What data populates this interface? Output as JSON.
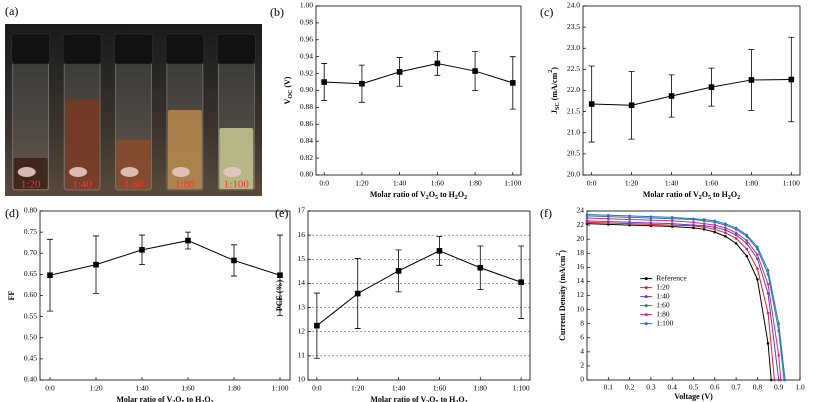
{
  "chart_data": [
    {
      "type": "photo",
      "panel_label": "(a)",
      "labels": [
        "1:20",
        "1:40",
        "1:60",
        "1:80",
        "1:100"
      ]
    },
    {
      "type": "line",
      "panel_label": "(b)",
      "ylabel": [
        {
          "t": "V"
        },
        {
          "t": "OC",
          "sub": true
        },
        {
          "t": " (V)"
        }
      ],
      "xlabel": [
        {
          "t": "Molar ratio of V"
        },
        {
          "t": "2",
          "sub": true
        },
        {
          "t": "O"
        },
        {
          "t": "5",
          "sub": true
        },
        {
          "t": " to H"
        },
        {
          "t": "2",
          "sub": true
        },
        {
          "t": "O"
        },
        {
          "t": "2",
          "sub": true
        }
      ],
      "categories": [
        "0:0",
        "1:20",
        "1:40",
        "1:60",
        "1:80",
        "1:100"
      ],
      "values": [
        0.91,
        0.908,
        0.922,
        0.932,
        0.923,
        0.909
      ],
      "errors": [
        0.022,
        0.022,
        0.017,
        0.014,
        0.023,
        0.031
      ],
      "ylim": [
        0.8,
        1.0
      ],
      "yticks": [
        {
          "value": 0.8,
          "label": "0.80"
        },
        0.82,
        0.84,
        0.86,
        0.88,
        {
          "value": 0.9,
          "label": "0.90"
        },
        0.92,
        0.94,
        0.96,
        0.98,
        {
          "value": 1.0,
          "label": "1.00"
        }
      ],
      "color": "#000000",
      "grid": false
    },
    {
      "type": "line",
      "panel_label": "(c)",
      "ylabel": [
        {
          "t": "J"
        },
        {
          "t": "SC",
          "sub": true
        },
        {
          "t": " (mA/cm"
        },
        {
          "t": "2",
          "sup": true
        },
        {
          "t": ")"
        }
      ],
      "xlabel": [
        {
          "t": "Molar ratio of V"
        },
        {
          "t": "2",
          "sub": true
        },
        {
          "t": "O"
        },
        {
          "t": "5",
          "sub": true
        },
        {
          "t": " to H"
        },
        {
          "t": "2",
          "sub": true
        },
        {
          "t": "O"
        },
        {
          "t": "2",
          "sub": true
        }
      ],
      "categories": [
        "0:0",
        "1:20",
        "1:40",
        "1:60",
        "1:80",
        "1:100"
      ],
      "values": [
        21.68,
        21.65,
        21.87,
        22.08,
        22.25,
        22.26
      ],
      "errors": [
        0.9,
        0.8,
        0.5,
        0.45,
        0.72,
        1.0
      ],
      "ylim": [
        20.0,
        24.0
      ],
      "yticks": [
        {
          "value": 20,
          "label": "20.0"
        },
        20.5,
        {
          "value": 21,
          "label": "21.0"
        },
        21.5,
        {
          "value": 22,
          "label": "22.0"
        },
        22.5,
        {
          "value": 23,
          "label": "23.0"
        },
        23.5,
        {
          "value": 24,
          "label": "24.0"
        }
      ],
      "color": "#000000",
      "grid": false
    },
    {
      "type": "line",
      "panel_label": "(d)",
      "ylabel": [
        {
          "t": "FF"
        }
      ],
      "xlabel": [
        {
          "t": "Molar ratio of V"
        },
        {
          "t": "2",
          "sub": true
        },
        {
          "t": "O"
        },
        {
          "t": "5",
          "sub": true
        },
        {
          "t": " to H"
        },
        {
          "t": "2",
          "sub": true
        },
        {
          "t": "O"
        },
        {
          "t": "2",
          "sub": true
        }
      ],
      "categories": [
        "0:0",
        "1:20",
        "1:40",
        "1:60",
        "1:80",
        "1:100"
      ],
      "values": [
        0.648,
        0.673,
        0.708,
        0.73,
        0.683,
        0.648
      ],
      "errors": [
        0.085,
        0.068,
        0.035,
        0.02,
        0.037,
        0.095
      ],
      "ylim": [
        0.4,
        0.8
      ],
      "yticks": [
        {
          "value": 0.4,
          "label": "0.40"
        },
        0.45,
        {
          "value": 0.5,
          "label": "0.50"
        },
        0.55,
        {
          "value": 0.6,
          "label": "0.60"
        },
        0.65,
        {
          "value": 0.7,
          "label": "0.70"
        },
        0.75,
        {
          "value": 0.8,
          "label": "0.80"
        }
      ],
      "color": "#000000",
      "grid": false
    },
    {
      "type": "line",
      "panel_label": "(e)",
      "ylabel": [
        {
          "t": "PCE (%)"
        }
      ],
      "xlabel": [
        {
          "t": "Molar ratio of V"
        },
        {
          "t": "2",
          "sub": true
        },
        {
          "t": "O"
        },
        {
          "t": "5",
          "sub": true
        },
        {
          "t": " to H"
        },
        {
          "t": "2",
          "sub": true
        },
        {
          "t": "O"
        },
        {
          "t": "2",
          "sub": true
        }
      ],
      "categories": [
        "0:0",
        "1:20",
        "1:40",
        "1:60",
        "1:80",
        "1:100"
      ],
      "values": [
        12.25,
        13.58,
        14.52,
        15.35,
        14.65,
        14.05
      ],
      "errors": [
        1.35,
        1.45,
        0.87,
        0.6,
        0.9,
        1.5
      ],
      "ylim": [
        10,
        17
      ],
      "yticks": [
        10,
        11,
        12,
        13,
        14,
        15,
        16,
        17
      ],
      "color": "#000000",
      "grid": true
    },
    {
      "type": "jv",
      "panel_label": "(f)",
      "ylabel": [
        {
          "t": "Current Density (mA/cm"
        },
        {
          "t": "2",
          "sup": true
        },
        {
          "t": ")"
        }
      ],
      "xlabel": [
        {
          "t": "Voltage (V)"
        }
      ],
      "xlim": [
        0,
        1.0
      ],
      "xticks": [
        0.1,
        0.2,
        0.3,
        0.4,
        0.5,
        0.6,
        0.7,
        0.8,
        0.9,
        {
          "value": 1.0,
          "label": "1.0"
        }
      ],
      "ylim": [
        0,
        24
      ],
      "yticks": [
        0,
        2,
        4,
        6,
        8,
        10,
        12,
        14,
        16,
        18,
        20,
        22,
        24
      ],
      "legend": "center-left",
      "series": [
        {
          "name": "Reference",
          "color": "#000000",
          "x": [
            0,
            0.1,
            0.2,
            0.3,
            0.4,
            0.5,
            0.55,
            0.6,
            0.65,
            0.7,
            0.75,
            0.8,
            0.85,
            0.865
          ],
          "values": [
            22.2,
            22.1,
            22.0,
            21.9,
            21.8,
            21.6,
            21.4,
            21.0,
            20.4,
            19.4,
            17.6,
            14.3,
            5.2,
            0
          ]
        },
        {
          "name": "1:20",
          "color": "#e8202a",
          "x": [
            0,
            0.1,
            0.2,
            0.3,
            0.4,
            0.5,
            0.55,
            0.6,
            0.65,
            0.7,
            0.75,
            0.8,
            0.85,
            0.88
          ],
          "values": [
            22.4,
            22.3,
            22.2,
            22.1,
            22.0,
            21.9,
            21.7,
            21.4,
            20.9,
            20.1,
            18.6,
            15.8,
            9.5,
            0
          ]
        },
        {
          "name": "1:40",
          "color": "#5a3fc4",
          "x": [
            0,
            0.1,
            0.2,
            0.3,
            0.4,
            0.5,
            0.55,
            0.6,
            0.65,
            0.7,
            0.75,
            0.8,
            0.85,
            0.9
          ],
          "values": [
            22.6,
            22.5,
            22.4,
            22.3,
            22.2,
            22.0,
            21.9,
            21.7,
            21.3,
            20.6,
            19.4,
            17.2,
            12.3,
            0
          ]
        },
        {
          "name": "1:60",
          "color": "#1f8a70",
          "x": [
            0,
            0.1,
            0.2,
            0.3,
            0.4,
            0.5,
            0.55,
            0.6,
            0.65,
            0.7,
            0.75,
            0.8,
            0.85,
            0.9,
            0.925
          ],
          "values": [
            23.3,
            23.2,
            23.1,
            23.0,
            22.9,
            22.8,
            22.6,
            22.4,
            22.0,
            21.4,
            20.4,
            18.6,
            15.0,
            7.0,
            0
          ]
        },
        {
          "name": "1:80",
          "color": "#e0209a",
          "x": [
            0,
            0.1,
            0.2,
            0.3,
            0.4,
            0.5,
            0.55,
            0.6,
            0.65,
            0.7,
            0.75,
            0.8,
            0.85,
            0.9,
            0.91
          ],
          "values": [
            23.0,
            22.9,
            22.8,
            22.7,
            22.6,
            22.4,
            22.2,
            22.0,
            21.6,
            20.9,
            19.8,
            17.8,
            13.6,
            3.5,
            0
          ]
        },
        {
          "name": "1:100",
          "color": "#2a6fd6",
          "x": [
            0,
            0.1,
            0.2,
            0.3,
            0.4,
            0.5,
            0.55,
            0.6,
            0.65,
            0.7,
            0.75,
            0.8,
            0.85,
            0.9,
            0.93
          ],
          "values": [
            23.5,
            23.4,
            23.3,
            23.2,
            23.1,
            22.9,
            22.8,
            22.6,
            22.2,
            21.6,
            20.6,
            18.9,
            15.6,
            8.0,
            0
          ]
        }
      ]
    }
  ]
}
